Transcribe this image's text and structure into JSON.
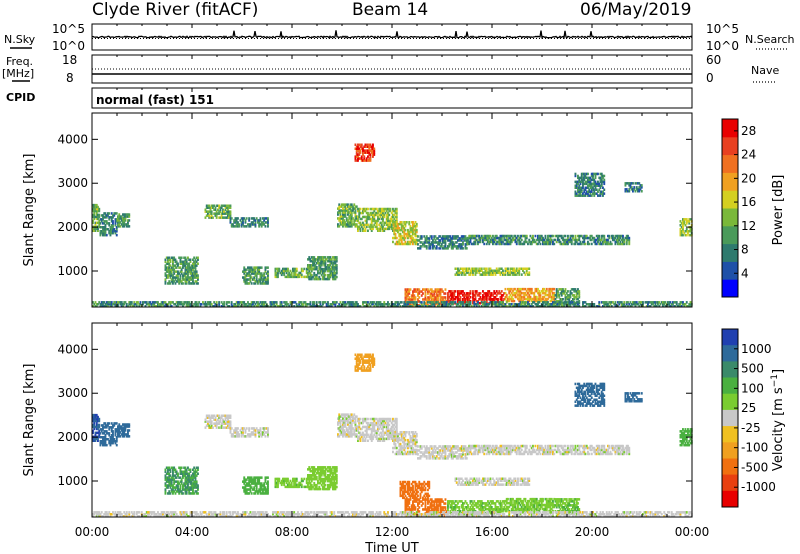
{
  "header": {
    "station": "Clyde River (fitACF)",
    "beam": "Beam 14",
    "date": "06/May/2019"
  },
  "left_labels": {
    "nsky": "N.Sky",
    "freq": "Freq.",
    "freq_unit": "[MHz]",
    "cpid": "CPID"
  },
  "right_labels": {
    "nsearch": "N.Search",
    "nave": "Nave"
  },
  "cpid_text": "normal (fast) 151",
  "colors": {
    "power_scale": [
      "#0000ff",
      "#1e50a8",
      "#2e7a6e",
      "#4a9a5a",
      "#7ab83a",
      "#d4d020",
      "#f0a020",
      "#f07020",
      "#e84020",
      "#e80000"
    ],
    "velocity_scale": [
      "#2040b0",
      "#2e6a9a",
      "#3a8a6a",
      "#4ab040",
      "#7acc30",
      "#c8c8c8",
      "#f0c020",
      "#f0a020",
      "#f07010",
      "#e84010",
      "#e80000"
    ]
  },
  "chart_data": [
    {
      "type": "line",
      "panel": "noise",
      "series": [
        {
          "name": "N.Sky",
          "style": "solid"
        },
        {
          "name": "N.Search",
          "style": "dotted"
        }
      ],
      "ylim_left": [
        "10^0",
        "10^5"
      ],
      "ylim_right": [
        "10^0",
        "10^5"
      ],
      "tick_labels_left": [
        "10^5",
        "10^0"
      ],
      "tick_labels_right": [
        "10^5",
        "10^0"
      ]
    },
    {
      "type": "line",
      "panel": "frequency",
      "series": [
        {
          "name": "Freq.",
          "style": "solid"
        },
        {
          "name": "Nave",
          "style": "dotted"
        }
      ],
      "tick_labels_left": [
        "18",
        "8"
      ],
      "tick_labels_right": [
        "60",
        "0"
      ],
      "ylim_left": [
        8,
        18
      ],
      "ylim_right": [
        0,
        60
      ]
    },
    {
      "type": "heatmap",
      "panel": "power",
      "ylabel": "Slant Range [km]",
      "yticks": [
        "1000",
        "2000",
        "3000",
        "4000"
      ],
      "ylim": [
        180,
        4600
      ],
      "colorbar_label": "Power [dB]",
      "colorbar_ticks": [
        "4",
        "8",
        "12",
        "16",
        "20",
        "24",
        "28"
      ],
      "colorbar_range": [
        0,
        30
      ],
      "patches": [
        {
          "t": [
            0.0,
            0.3
          ],
          "r": [
            1900,
            2500
          ],
          "v": 12
        },
        {
          "t": [
            0.3,
            1.0
          ],
          "r": [
            1800,
            2300
          ],
          "v": 8
        },
        {
          "t": [
            1.0,
            1.5
          ],
          "r": [
            2000,
            2300
          ],
          "v": 10
        },
        {
          "t": [
            2.9,
            4.2
          ],
          "r": [
            700,
            1300
          ],
          "v": 10
        },
        {
          "t": [
            4.5,
            5.5
          ],
          "r": [
            2200,
            2500
          ],
          "v": 12
        },
        {
          "t": [
            5.5,
            7.0
          ],
          "r": [
            2000,
            2200
          ],
          "v": 8
        },
        {
          "t": [
            6.0,
            7.0
          ],
          "r": [
            700,
            1100
          ],
          "v": 10
        },
        {
          "t": [
            7.3,
            8.6
          ],
          "r": [
            850,
            1050
          ],
          "v": 12
        },
        {
          "t": [
            8.6,
            9.8
          ],
          "r": [
            800,
            1300
          ],
          "v": 10
        },
        {
          "t": [
            9.8,
            10.6
          ],
          "r": [
            2000,
            2500
          ],
          "v": 12
        },
        {
          "t": [
            10.6,
            12.2
          ],
          "r": [
            1900,
            2400
          ],
          "v": 14
        },
        {
          "t": [
            10.5,
            11.3
          ],
          "r": [
            3500,
            3900
          ],
          "v": 26
        },
        {
          "t": [
            12.0,
            13.0
          ],
          "r": [
            1600,
            2100
          ],
          "v": 16
        },
        {
          "t": [
            13.0,
            15.0
          ],
          "r": [
            1500,
            1800
          ],
          "v": 8
        },
        {
          "t": [
            15.0,
            21.5
          ],
          "r": [
            1600,
            1800
          ],
          "v": 9
        },
        {
          "t": [
            12.5,
            14.2
          ],
          "r": [
            200,
            600
          ],
          "v": 22
        },
        {
          "t": [
            14.2,
            16.5
          ],
          "r": [
            250,
            550
          ],
          "v": 28
        },
        {
          "t": [
            16.5,
            18.5
          ],
          "r": [
            300,
            600
          ],
          "v": 20
        },
        {
          "t": [
            14.5,
            17.5
          ],
          "r": [
            900,
            1050
          ],
          "v": 14
        },
        {
          "t": [
            18.5,
            19.5
          ],
          "r": [
            250,
            600
          ],
          "v": 10
        },
        {
          "t": [
            19.3,
            20.5
          ],
          "r": [
            2700,
            3200
          ],
          "v": 8
        },
        {
          "t": [
            21.3,
            22.0
          ],
          "r": [
            2800,
            3000
          ],
          "v": 8
        },
        {
          "t": [
            23.5,
            24.0
          ],
          "r": [
            1800,
            2200
          ],
          "v": 14
        },
        {
          "t": [
            0.0,
            24.0
          ],
          "r": [
            180,
            280
          ],
          "v": 9
        }
      ]
    },
    {
      "type": "heatmap",
      "panel": "velocity",
      "ylabel": "Slant Range [km]",
      "xlabel": "Time UT",
      "xticks": [
        "00:00",
        "04:00",
        "08:00",
        "12:00",
        "16:00",
        "20:00",
        "00:00"
      ],
      "xlim": [
        0,
        24
      ],
      "yticks": [
        "1000",
        "2000",
        "3000",
        "4000"
      ],
      "ylim": [
        180,
        4600
      ],
      "colorbar_label": "Velocity [m s^-1]",
      "colorbar_ticks": [
        "1000",
        "500",
        "100",
        "25",
        "-25",
        "-100",
        "-500",
        "-1000"
      ],
      "patches": [
        {
          "t": [
            0.0,
            0.3
          ],
          "r": [
            1900,
            2500
          ],
          "v": 1000
        },
        {
          "t": [
            0.3,
            1.0
          ],
          "r": [
            1800,
            2300
          ],
          "v": 600
        },
        {
          "t": [
            1.0,
            1.5
          ],
          "r": [
            2000,
            2300
          ],
          "v": 700
        },
        {
          "t": [
            2.9,
            4.2
          ],
          "r": [
            700,
            1300
          ],
          "v": 250
        },
        {
          "t": [
            4.5,
            5.5
          ],
          "r": [
            2200,
            2500
          ],
          "v": 0
        },
        {
          "t": [
            5.5,
            7.0
          ],
          "r": [
            2000,
            2200
          ],
          "v": 0
        },
        {
          "t": [
            6.0,
            7.0
          ],
          "r": [
            700,
            1100
          ],
          "v": 150
        },
        {
          "t": [
            7.3,
            8.6
          ],
          "r": [
            850,
            1050
          ],
          "v": 80
        },
        {
          "t": [
            8.6,
            9.8
          ],
          "r": [
            800,
            1300
          ],
          "v": 60
        },
        {
          "t": [
            9.8,
            10.6
          ],
          "r": [
            2000,
            2500
          ],
          "v": 0
        },
        {
          "t": [
            10.6,
            12.2
          ],
          "r": [
            1900,
            2400
          ],
          "v": 0
        },
        {
          "t": [
            10.5,
            11.3
          ],
          "r": [
            3500,
            3900
          ],
          "v": -150
        },
        {
          "t": [
            12.0,
            13.0
          ],
          "r": [
            1600,
            2100
          ],
          "v": 0
        },
        {
          "t": [
            13.0,
            15.0
          ],
          "r": [
            1500,
            1800
          ],
          "v": 0
        },
        {
          "t": [
            15.0,
            21.5
          ],
          "r": [
            1600,
            1800
          ],
          "v": 0
        },
        {
          "t": [
            12.5,
            14.2
          ],
          "r": [
            200,
            600
          ],
          "v": -400
        },
        {
          "t": [
            12.3,
            13.5
          ],
          "r": [
            600,
            1000
          ],
          "v": -400
        },
        {
          "t": [
            14.2,
            16.5
          ],
          "r": [
            250,
            550
          ],
          "v": 80
        },
        {
          "t": [
            16.5,
            18.5
          ],
          "r": [
            300,
            600
          ],
          "v": 80
        },
        {
          "t": [
            14.5,
            17.5
          ],
          "r": [
            900,
            1050
          ],
          "v": 0
        },
        {
          "t": [
            18.5,
            19.5
          ],
          "r": [
            250,
            600
          ],
          "v": 90
        },
        {
          "t": [
            19.3,
            20.5
          ],
          "r": [
            2700,
            3200
          ],
          "v": 600
        },
        {
          "t": [
            21.3,
            22.0
          ],
          "r": [
            2800,
            3000
          ],
          "v": 700
        },
        {
          "t": [
            23.5,
            24.0
          ],
          "r": [
            1800,
            2200
          ],
          "v": 200
        },
        {
          "t": [
            0.0,
            24.0
          ],
          "r": [
            180,
            280
          ],
          "v": 0
        }
      ]
    }
  ]
}
